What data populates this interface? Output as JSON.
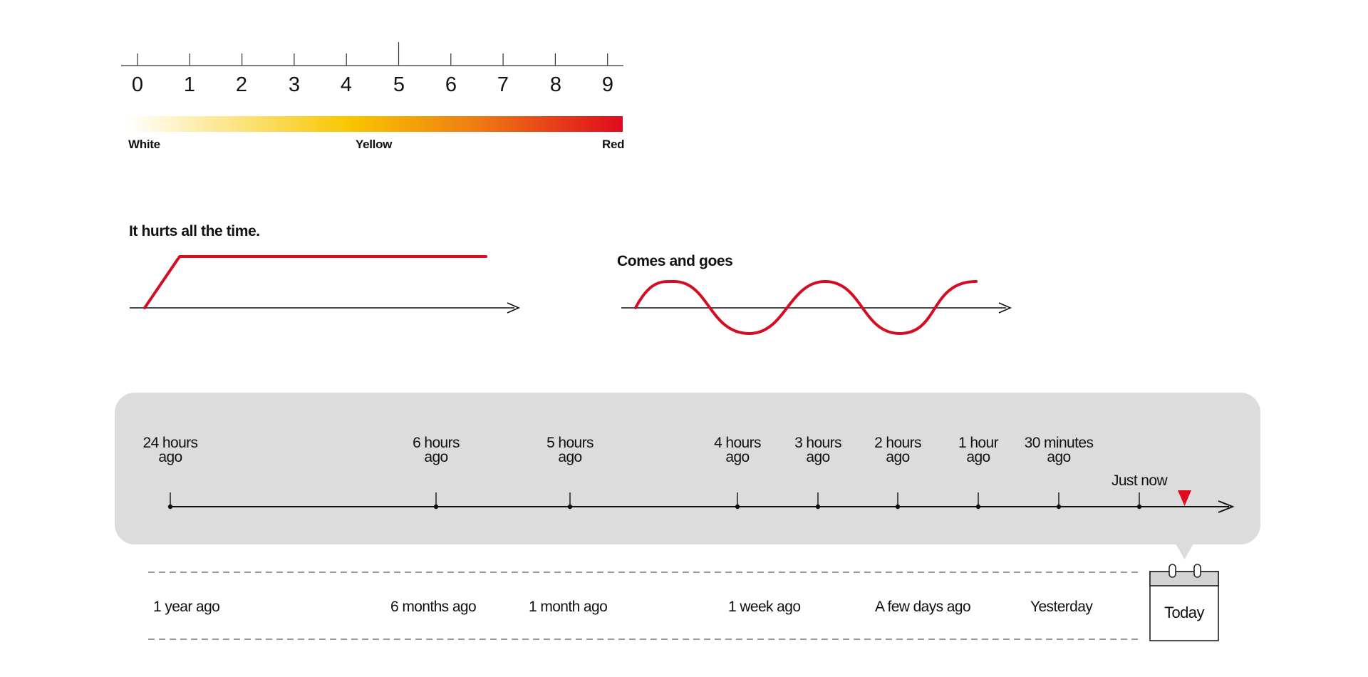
{
  "intensity_scale": {
    "numbers": [
      "0",
      "1",
      "2",
      "3",
      "4",
      "5",
      "6",
      "7",
      "8",
      "9"
    ],
    "colors": {
      "white": "#ffffff",
      "yellow": "#f8c600",
      "orange": "#ef7d12",
      "red": "#e10a1e"
    },
    "color_labels": {
      "white": "White",
      "yellow": "Yellow",
      "red": "Red"
    }
  },
  "pain_patterns": {
    "constant": {
      "title": "It hurts all the time."
    },
    "intermittent": {
      "title": "Comes and goes"
    },
    "line_color": "#d50d22"
  },
  "timeline": {
    "panel_color": "#dcdcdc",
    "hours": [
      [
        "24 hours",
        "ago"
      ],
      [
        "6 hours",
        "ago"
      ],
      [
        "5 hours",
        "ago"
      ],
      [
        "4 hours",
        "ago"
      ],
      [
        "3 hours",
        "ago"
      ],
      [
        "2 hours",
        "ago"
      ],
      [
        "1 hour",
        "ago"
      ],
      [
        "30 minutes",
        "ago"
      ],
      [
        "Just now"
      ]
    ],
    "marker_color": "#e10a1e",
    "days": [
      "1 year ago",
      "6 months ago",
      "1 month ago",
      "1 week ago",
      "A few days ago",
      "Yesterday"
    ],
    "today": "Today",
    "icons": [
      "calendar-icon",
      "current-time-marker-icon",
      "arrow-right-icon"
    ]
  }
}
